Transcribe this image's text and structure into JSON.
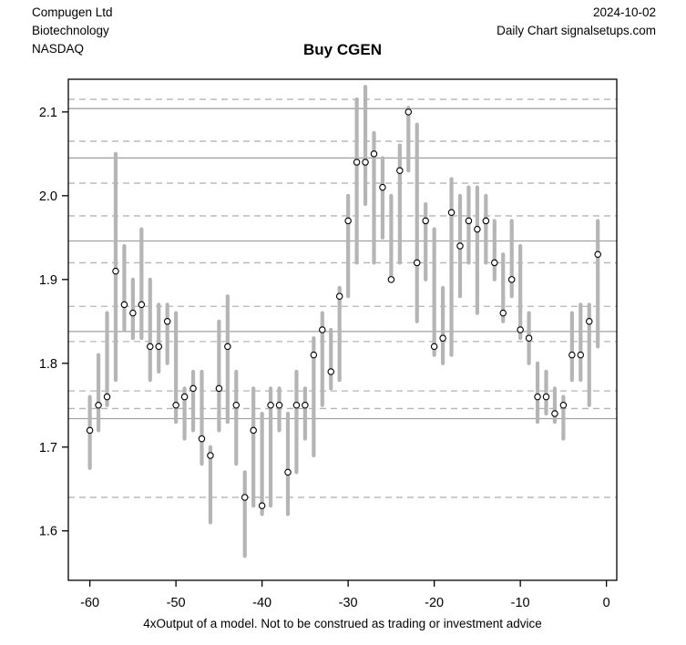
{
  "header": {
    "company": "Compugen Ltd",
    "sector": "Biotechnology",
    "exchange": "NASDAQ",
    "date": "2024-10-02",
    "source": "Daily Chart signalsetups.com"
  },
  "title": "Buy CGEN",
  "footer": {
    "disclaimer": "4xOutput of a model. Not to be construed as trading or investment advice"
  },
  "chart_data": {
    "type": "bar",
    "subtype": "high-low-close",
    "title": "Buy CGEN",
    "xlabel": "",
    "ylabel": "",
    "xlim": [
      -62.5,
      1.2
    ],
    "ylim": [
      1.541,
      2.139
    ],
    "grid": false,
    "x_ticks": [
      {
        "v": -60,
        "label": "-60"
      },
      {
        "v": -50,
        "label": "-50"
      },
      {
        "v": -40,
        "label": "-40"
      },
      {
        "v": -30,
        "label": "-30"
      },
      {
        "v": -20,
        "label": "-20"
      },
      {
        "v": -10,
        "label": "-10"
      },
      {
        "v": 0,
        "label": "0"
      }
    ],
    "y_ticks": [
      {
        "v": 1.6,
        "label": "1.6"
      },
      {
        "v": 1.7,
        "label": "1.7"
      },
      {
        "v": 1.8,
        "label": "1.8"
      },
      {
        "v": 1.9,
        "label": "1.9"
      },
      {
        "v": 2.0,
        "label": "2.0"
      },
      {
        "v": 2.1,
        "label": "2.1"
      }
    ],
    "levels_solid": [
      2.104,
      2.045,
      1.946,
      1.838,
      1.734
    ],
    "levels_dashed": [
      2.115,
      2.065,
      2.015,
      1.976,
      1.92,
      1.868,
      1.826,
      1.767,
      1.746,
      1.64
    ],
    "bars": [
      {
        "t": -60,
        "high": 1.76,
        "low": 1.675,
        "close": 1.72
      },
      {
        "t": -59,
        "high": 1.81,
        "low": 1.72,
        "close": 1.75
      },
      {
        "t": -58,
        "high": 1.86,
        "low": 1.75,
        "close": 1.76
      },
      {
        "t": -57,
        "high": 2.05,
        "low": 1.78,
        "close": 1.91
      },
      {
        "t": -56,
        "high": 1.94,
        "low": 1.84,
        "close": 1.87
      },
      {
        "t": -55,
        "high": 1.9,
        "low": 1.83,
        "close": 1.86
      },
      {
        "t": -54,
        "high": 1.96,
        "low": 1.83,
        "close": 1.87
      },
      {
        "t": -53,
        "high": 1.9,
        "low": 1.78,
        "close": 1.82
      },
      {
        "t": -52,
        "high": 1.87,
        "low": 1.79,
        "close": 1.82
      },
      {
        "t": -51,
        "high": 1.87,
        "low": 1.8,
        "close": 1.85
      },
      {
        "t": -50,
        "high": 1.86,
        "low": 1.73,
        "close": 1.75
      },
      {
        "t": -49,
        "high": 1.77,
        "low": 1.71,
        "close": 1.76
      },
      {
        "t": -48,
        "high": 1.79,
        "low": 1.72,
        "close": 1.77
      },
      {
        "t": -47,
        "high": 1.79,
        "low": 1.68,
        "close": 1.71
      },
      {
        "t": -46,
        "high": 1.7,
        "low": 1.61,
        "close": 1.69
      },
      {
        "t": -45,
        "high": 1.85,
        "low": 1.72,
        "close": 1.77
      },
      {
        "t": -44,
        "high": 1.88,
        "low": 1.73,
        "close": 1.82
      },
      {
        "t": -43,
        "high": 1.79,
        "low": 1.68,
        "close": 1.75
      },
      {
        "t": -42,
        "high": 1.67,
        "low": 1.57,
        "close": 1.64
      },
      {
        "t": -41,
        "high": 1.77,
        "low": 1.63,
        "close": 1.72
      },
      {
        "t": -40,
        "high": 1.74,
        "low": 1.62,
        "close": 1.63
      },
      {
        "t": -39,
        "high": 1.77,
        "low": 1.63,
        "close": 1.75
      },
      {
        "t": -38,
        "high": 1.77,
        "low": 1.72,
        "close": 1.75
      },
      {
        "t": -37,
        "high": 1.74,
        "low": 1.62,
        "close": 1.67
      },
      {
        "t": -36,
        "high": 1.79,
        "low": 1.67,
        "close": 1.75
      },
      {
        "t": -35,
        "high": 1.77,
        "low": 1.71,
        "close": 1.75
      },
      {
        "t": -34,
        "high": 1.83,
        "low": 1.69,
        "close": 1.81
      },
      {
        "t": -33,
        "high": 1.86,
        "low": 1.75,
        "close": 1.84
      },
      {
        "t": -32,
        "high": 1.84,
        "low": 1.77,
        "close": 1.79
      },
      {
        "t": -31,
        "high": 1.89,
        "low": 1.78,
        "close": 1.88
      },
      {
        "t": -30,
        "high": 2.0,
        "low": 1.88,
        "close": 1.97
      },
      {
        "t": -29,
        "high": 2.115,
        "low": 1.92,
        "close": 2.04
      },
      {
        "t": -28,
        "high": 2.13,
        "low": 1.99,
        "close": 2.04
      },
      {
        "t": -27,
        "high": 2.075,
        "low": 1.92,
        "close": 2.05
      },
      {
        "t": -26,
        "high": 2.045,
        "low": 1.95,
        "close": 2.01
      },
      {
        "t": -25,
        "high": 2.0,
        "low": 1.9,
        "close": 1.9
      },
      {
        "t": -24,
        "high": 2.06,
        "low": 1.92,
        "close": 2.03
      },
      {
        "t": -23,
        "high": 2.105,
        "low": 2.03,
        "close": 2.1
      },
      {
        "t": -22,
        "high": 2.085,
        "low": 1.85,
        "close": 1.92
      },
      {
        "t": -21,
        "high": 1.99,
        "low": 1.9,
        "close": 1.97
      },
      {
        "t": -20,
        "high": 1.96,
        "low": 1.81,
        "close": 1.82
      },
      {
        "t": -19,
        "high": 1.89,
        "low": 1.8,
        "close": 1.83
      },
      {
        "t": -18,
        "high": 2.02,
        "low": 1.81,
        "close": 1.98
      },
      {
        "t": -17,
        "high": 2.0,
        "low": 1.88,
        "close": 1.94
      },
      {
        "t": -16,
        "high": 2.01,
        "low": 1.92,
        "close": 1.97
      },
      {
        "t": -15,
        "high": 2.01,
        "low": 1.86,
        "close": 1.96
      },
      {
        "t": -14,
        "high": 2.0,
        "low": 1.92,
        "close": 1.97
      },
      {
        "t": -13,
        "high": 1.97,
        "low": 1.9,
        "close": 1.92
      },
      {
        "t": -12,
        "high": 1.93,
        "low": 1.85,
        "close": 1.86
      },
      {
        "t": -11,
        "high": 1.97,
        "low": 1.88,
        "close": 1.9
      },
      {
        "t": -10,
        "high": 1.94,
        "low": 1.83,
        "close": 1.84
      },
      {
        "t": -9,
        "high": 1.86,
        "low": 1.8,
        "close": 1.83
      },
      {
        "t": -8,
        "high": 1.8,
        "low": 1.73,
        "close": 1.76
      },
      {
        "t": -7,
        "high": 1.79,
        "low": 1.74,
        "close": 1.76
      },
      {
        "t": -6,
        "high": 1.77,
        "low": 1.73,
        "close": 1.74
      },
      {
        "t": -5,
        "high": 1.76,
        "low": 1.71,
        "close": 1.75
      },
      {
        "t": -4,
        "high": 1.86,
        "low": 1.78,
        "close": 1.81
      },
      {
        "t": -3,
        "high": 1.87,
        "low": 1.78,
        "close": 1.81
      },
      {
        "t": -2,
        "high": 1.87,
        "low": 1.75,
        "close": 1.85
      },
      {
        "t": -1,
        "high": 1.97,
        "low": 1.82,
        "close": 1.93
      }
    ],
    "colors": {
      "bar": "#b5b5b5",
      "solid_level": "#a2a2a2",
      "dashed_level": "#b5b5b5",
      "close_marker_stroke": "#000000",
      "close_marker_fill": "#ffffff",
      "axis": "#000000",
      "background": "#ffffff"
    },
    "legend": null
  }
}
